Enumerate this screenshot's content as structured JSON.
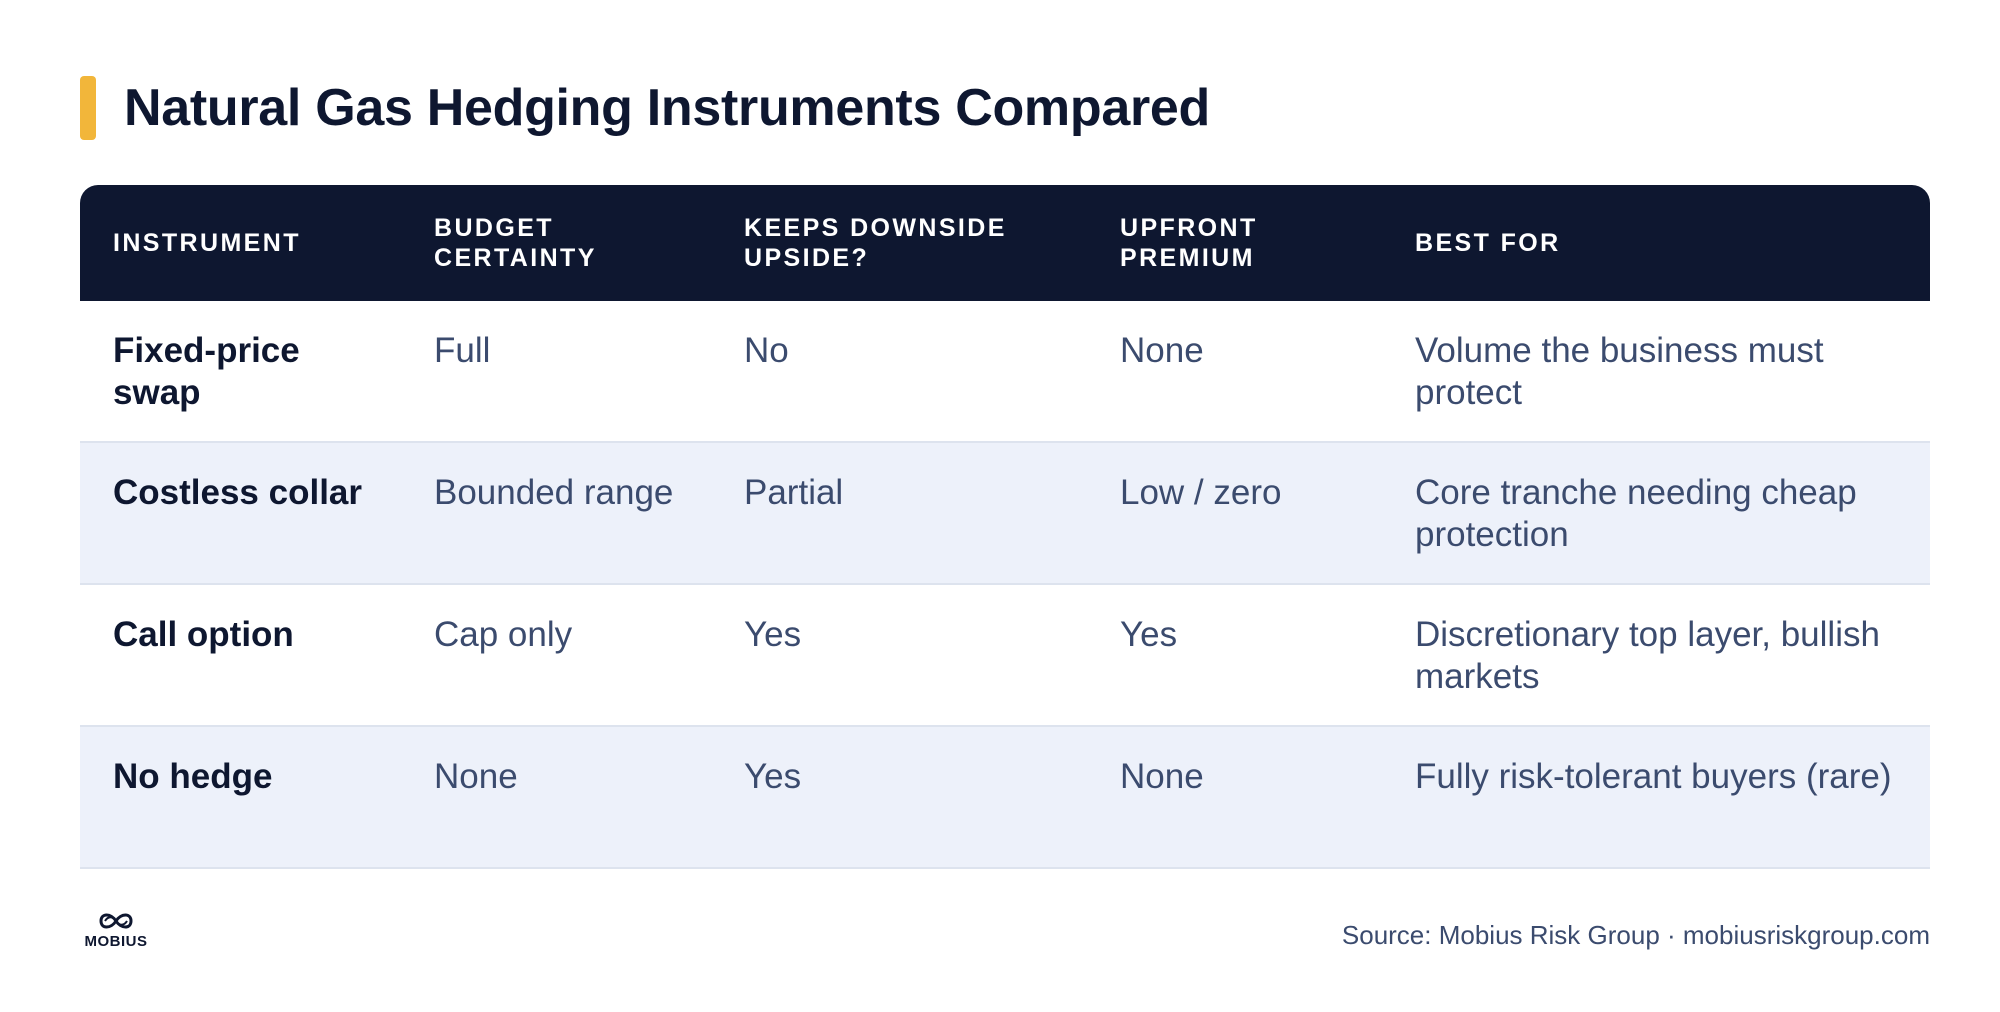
{
  "title": "Natural Gas Hedging Instruments Compared",
  "accent_color": "#f2b63a",
  "header_color": "#0e1730",
  "columns": [
    "INSTRUMENT",
    "BUDGET CERTAINTY",
    "KEEPS DOWNSIDE UPSIDE?",
    "UPFRONT PREMIUM",
    "BEST FOR"
  ],
  "rows": [
    [
      "Fixed-price swap",
      "Full",
      "No",
      "None",
      "Volume the business must protect"
    ],
    [
      "Costless collar",
      "Bounded range",
      "Partial",
      "Low / zero",
      "Core tranche needing cheap protection"
    ],
    [
      "Call option",
      "Cap only",
      "Yes",
      "Yes",
      "Discretionary top layer, bullish markets"
    ],
    [
      "No hedge",
      "None",
      "Yes",
      "None",
      "Fully risk-tolerant buyers (rare)"
    ]
  ],
  "footer": {
    "logo_text": "MOBIUS",
    "logo_icon": "infinity-loop-icon",
    "source": "Source: Mobius Risk Group · mobiusriskgroup.com"
  }
}
